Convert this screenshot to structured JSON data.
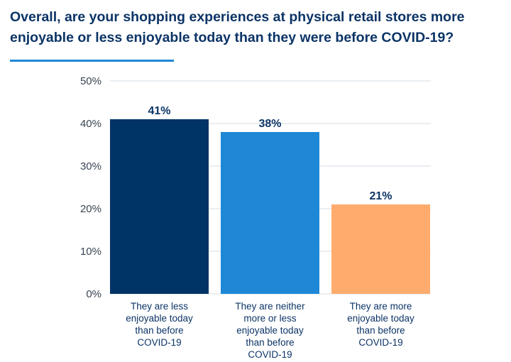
{
  "title": "Overall, are your shopping experiences at physical retail stores more enjoyable or less enjoyable today than they were before COVID-19?",
  "colors": {
    "title": "#0c3466",
    "accent": "#1e88d6",
    "grid": "#d6dde6",
    "bars": [
      "#003366",
      "#1e88d6",
      "#ffab6e"
    ]
  },
  "chart_data": {
    "type": "bar",
    "title": "Overall, are your shopping experiences at physical retail stores more enjoyable or less enjoyable today than they were before COVID-19?",
    "categories": [
      [
        "They are less",
        "enjoyable today",
        "than before",
        "COVID-19"
      ],
      [
        "They are neither",
        "more or less",
        "enjoyable today",
        "than before",
        "COVID-19"
      ],
      [
        "They are more",
        "enjoyable today",
        "than before",
        "COVID-19"
      ]
    ],
    "values": [
      41,
      38,
      21
    ],
    "data_labels": [
      "41%",
      "38%",
      "21%"
    ],
    "yticks": [
      0,
      10,
      20,
      30,
      40,
      50
    ],
    "ytick_labels": [
      "0%",
      "10%",
      "20%",
      "30%",
      "40%",
      "50%"
    ],
    "ylim": [
      0,
      50
    ],
    "xlabel": "",
    "ylabel": "",
    "grid": true,
    "legend": "none"
  }
}
